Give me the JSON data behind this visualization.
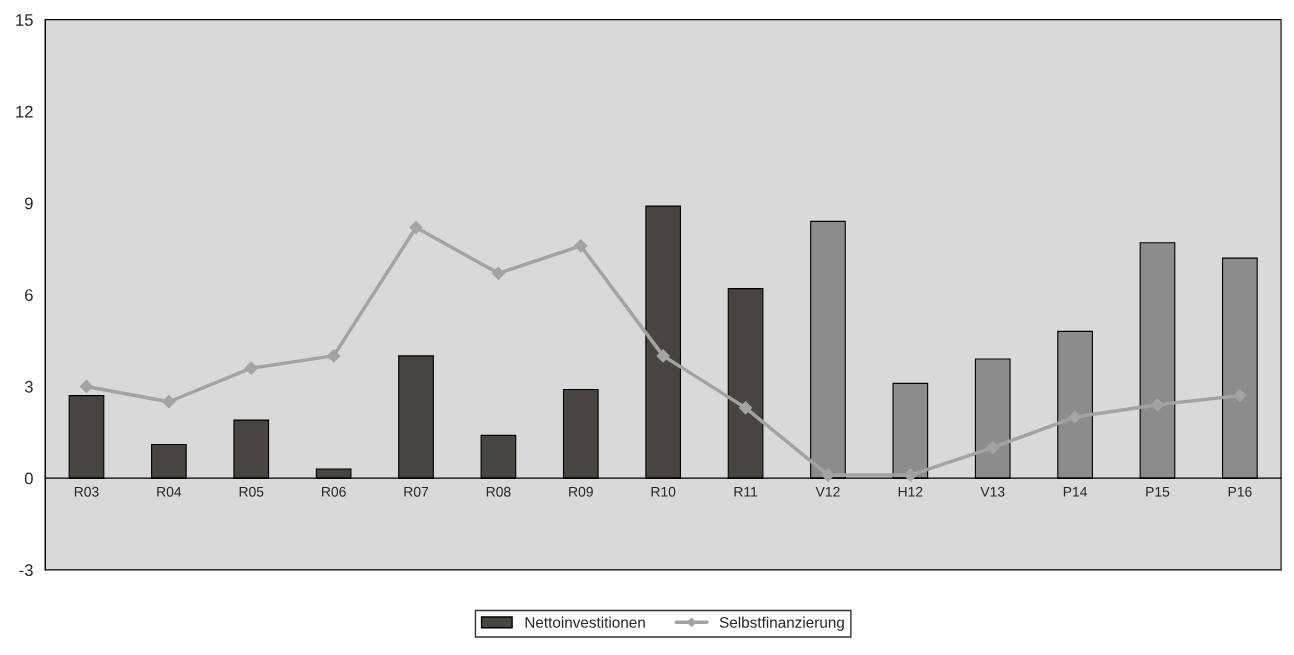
{
  "chart_data": {
    "type": "bar",
    "categories": [
      "R03",
      "R04",
      "R05",
      "R06",
      "R07",
      "R08",
      "R09",
      "R10",
      "R11",
      "V12",
      "H12",
      "V13",
      "P14",
      "P15",
      "P16"
    ],
    "series": [
      {
        "name": "Nettoinvestitionen",
        "color": "#48443f",
        "colors": [
          "#48443f",
          "#48443f",
          "#48443f",
          "#48443f",
          "#48443f",
          "#48443f",
          "#48443f",
          "#48443f",
          "#48443f",
          "#8c8c8c",
          "#8c8c8c",
          "#8c8c8c",
          "#8c8c8c",
          "#8c8c8c",
          "#8c8c8c"
        ],
        "values": [
          2.7,
          1.1,
          1.9,
          0.3,
          4.0,
          1.4,
          2.9,
          8.9,
          6.2,
          8.4,
          3.1,
          3.9,
          4.8,
          7.7,
          7.2
        ]
      },
      {
        "name": "Selbstfinanzierung",
        "type": "line",
        "color": "#a3a3a3",
        "marker": "diamond",
        "values": [
          3.0,
          2.5,
          3.6,
          4.0,
          8.2,
          6.7,
          7.6,
          4.0,
          2.3,
          0.1,
          0.1,
          1.0,
          2.0,
          2.4,
          2.7
        ]
      }
    ],
    "ylim": [
      -3,
      15
    ],
    "yticks": [
      -3,
      0,
      3,
      6,
      9,
      12,
      15
    ],
    "grid": false,
    "legend": "bottom"
  }
}
